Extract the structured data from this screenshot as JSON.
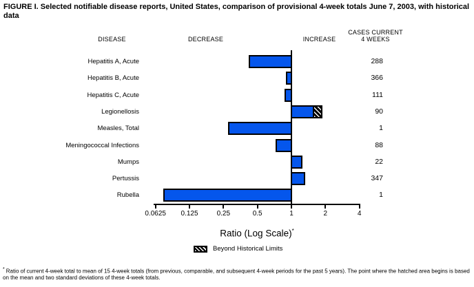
{
  "title": "FIGURE I. Selected notifiable disease reports, United States, comparison of provisional 4-week totals June 7, 2003, with historical data",
  "columns": {
    "disease": "DISEASE",
    "decrease": "DECREASE",
    "increase": "INCREASE",
    "cases_line1": "CASES CURRENT",
    "cases_line2": "4 WEEKS"
  },
  "chart_data": {
    "type": "bar",
    "orientation": "horizontal",
    "scale": "log2",
    "baseline": 1,
    "axis_range": [
      0.0625,
      4
    ],
    "axis_ticks": [
      "0.0625",
      "0.125",
      "0.25",
      "0.5",
      "1",
      "2",
      "4"
    ],
    "xlabel_text": "Ratio (Log Scale)",
    "xlabel_marker": "*",
    "legend": {
      "label": "Beyond Historical Limits",
      "swatch": "black-white-diagonal-hatch"
    },
    "rows": [
      {
        "disease": "Hepatitis A, Acute",
        "cases": "288",
        "ratio": 0.42,
        "beyond_historical_limits": false
      },
      {
        "disease": "Hepatitis B, Acute",
        "cases": "366",
        "ratio": 0.89,
        "beyond_historical_limits": false
      },
      {
        "disease": "Hepatitis C, Acute",
        "cases": "111",
        "ratio": 0.87,
        "beyond_historical_limits": false
      },
      {
        "disease": "Legionellosis",
        "cases": "90",
        "ratio": 1.87,
        "beyond_historical_limits": true,
        "hatch_start_ratio": 1.6
      },
      {
        "disease": "Measles, Total",
        "cases": "1",
        "ratio": 0.275,
        "beyond_historical_limits": false
      },
      {
        "disease": "Meningococcal Infections",
        "cases": "88",
        "ratio": 0.72,
        "beyond_historical_limits": false
      },
      {
        "disease": "Mumps",
        "cases": "22",
        "ratio": 1.26,
        "beyond_historical_limits": false
      },
      {
        "disease": "Pertussis",
        "cases": "347",
        "ratio": 1.32,
        "beyond_historical_limits": false
      },
      {
        "disease": "Rubella",
        "cases": "1",
        "ratio": 0.073,
        "beyond_historical_limits": false
      }
    ]
  },
  "footnote": {
    "marker": "*",
    "text": "Ratio of current 4-week total to mean of 15 4-week totals (from previous, comparable, and subsequent 4-week periods for the past 5 years). The point where the hatched area begins is based on the mean and two standard deviations of these 4-week totals."
  },
  "colors": {
    "bar_fill": "#0556EC",
    "bar_border": "#000000",
    "background": "#FFFFFF",
    "text": "#000000"
  }
}
